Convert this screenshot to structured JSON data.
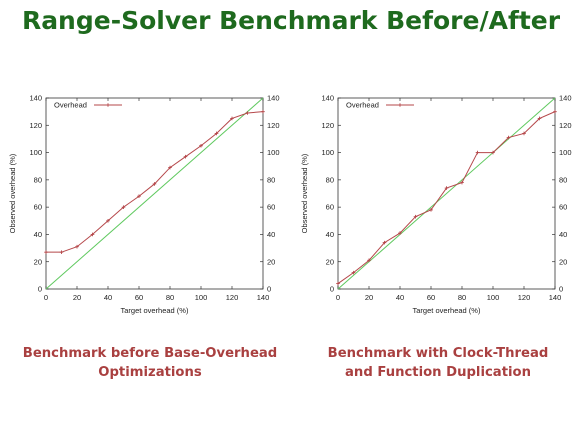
{
  "title": "Range-Solver Benchmark Before/After",
  "captions": [
    {
      "line1": "Benchmark before Base-Overhead",
      "line2": "Optimizations"
    },
    {
      "line1": "Benchmark with Clock-Thread",
      "line2": "and Function Duplication"
    }
  ],
  "colors": {
    "title": "#1e6a1e",
    "caption": "#a94040",
    "series": "#b5474a",
    "reference": "#5fc95f"
  },
  "chart_data": [
    {
      "type": "line",
      "xlabel": "Target overhead (%)",
      "ylabel": "Observed overhead (%)",
      "xlim": [
        0,
        140
      ],
      "ylim": [
        0,
        140
      ],
      "xticks": [
        "0",
        "20",
        "40",
        "60",
        "80",
        "100",
        "120",
        "140"
      ],
      "yticks": [
        "0",
        "20",
        "40",
        "60",
        "80",
        "100",
        "120",
        "140"
      ],
      "legend_position": "top-left",
      "grid": false,
      "reference_line": {
        "from": [
          0,
          0
        ],
        "to": [
          140,
          140
        ]
      },
      "series": [
        {
          "name": "Overhead",
          "x": [
            0,
            10,
            20,
            30,
            40,
            50,
            60,
            70,
            80,
            90,
            100,
            110,
            120,
            130,
            140
          ],
          "y": [
            27,
            27,
            31,
            40,
            50,
            60,
            68,
            77,
            89,
            97,
            105,
            114,
            125,
            129,
            130
          ]
        }
      ]
    },
    {
      "type": "line",
      "xlabel": "Target overhead (%)",
      "ylabel": "Observed overhead (%)",
      "xlim": [
        0,
        140
      ],
      "ylim": [
        0,
        140
      ],
      "xticks": [
        "0",
        "20",
        "40",
        "60",
        "80",
        "100",
        "120",
        "140"
      ],
      "yticks": [
        "0",
        "20",
        "40",
        "60",
        "80",
        "100",
        "120",
        "140"
      ],
      "legend_position": "top-left",
      "grid": false,
      "reference_line": {
        "from": [
          0,
          0
        ],
        "to": [
          140,
          140
        ]
      },
      "series": [
        {
          "name": "Overhead",
          "x": [
            0,
            10,
            20,
            30,
            40,
            50,
            60,
            70,
            80,
            90,
            100,
            110,
            120,
            130,
            140
          ],
          "y": [
            4,
            12,
            21,
            34,
            41,
            53,
            58,
            74,
            78,
            100,
            100,
            111,
            114,
            125,
            130
          ]
        }
      ]
    }
  ]
}
